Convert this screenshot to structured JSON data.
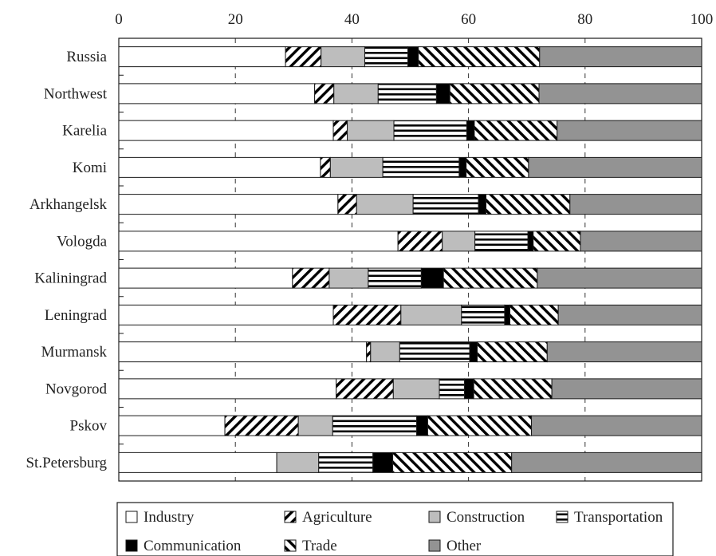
{
  "chart_data": {
    "type": "bar",
    "orientation": "horizontal",
    "stacked": true,
    "xlim": [
      0,
      100
    ],
    "xticks": [
      0,
      20,
      40,
      60,
      80,
      100
    ],
    "tick_labels": [
      "0",
      "20",
      "40",
      "60",
      "80",
      "100"
    ],
    "grid": "vertical-dashed",
    "legend_position": "bottom",
    "categories": [
      "Russia",
      "Northwest",
      "Karelia",
      "Komi",
      "Arkhangelsk",
      "Vologda",
      "Kaliningrad",
      "Leningrad",
      "Murmansk",
      "Novgorod",
      "Pskov",
      "St.Petersburg"
    ],
    "series": [
      {
        "name": "Industry",
        "pattern": "white",
        "values": [
          28.6,
          33.6,
          36.8,
          34.6,
          37.6,
          47.9,
          29.8,
          36.8,
          42.5,
          37.3,
          18.2,
          27.1
        ]
      },
      {
        "name": "Agriculture",
        "pattern": "diagonal-forward",
        "values": [
          6.1,
          3.3,
          2.4,
          1.7,
          3.2,
          7.6,
          6.3,
          11.6,
          0.7,
          9.8,
          12.6,
          0.0
        ]
      },
      {
        "name": "Construction",
        "pattern": "gray-light",
        "values": [
          7.5,
          7.6,
          8.0,
          9.0,
          9.7,
          5.6,
          6.7,
          10.4,
          5.0,
          7.9,
          5.9,
          7.2
        ]
      },
      {
        "name": "Transportation",
        "pattern": "horizontal-lines",
        "values": [
          7.4,
          10.0,
          12.5,
          13.1,
          11.2,
          9.1,
          9.1,
          7.4,
          12.0,
          4.3,
          14.4,
          9.3
        ]
      },
      {
        "name": "Communication",
        "pattern": "black",
        "values": [
          1.8,
          2.3,
          1.3,
          1.2,
          1.3,
          0.9,
          3.8,
          0.9,
          1.3,
          1.6,
          1.9,
          3.4
        ]
      },
      {
        "name": "Trade",
        "pattern": "diagonal-backward",
        "values": [
          20.8,
          15.3,
          14.2,
          10.7,
          14.4,
          8.1,
          16.1,
          8.3,
          12.0,
          13.4,
          17.8,
          20.4
        ]
      },
      {
        "name": "Other",
        "pattern": "gray-dark",
        "values": [
          27.8,
          27.9,
          24.8,
          29.7,
          22.6,
          20.8,
          28.2,
          24.6,
          26.5,
          25.7,
          29.2,
          32.6
        ]
      }
    ],
    "colors": {
      "white": "#ffffff",
      "light_gray": "#bdbdbd",
      "dark_gray": "#939393",
      "black": "#000000",
      "outline": "#1a1a1a",
      "grid": "#333333"
    }
  }
}
